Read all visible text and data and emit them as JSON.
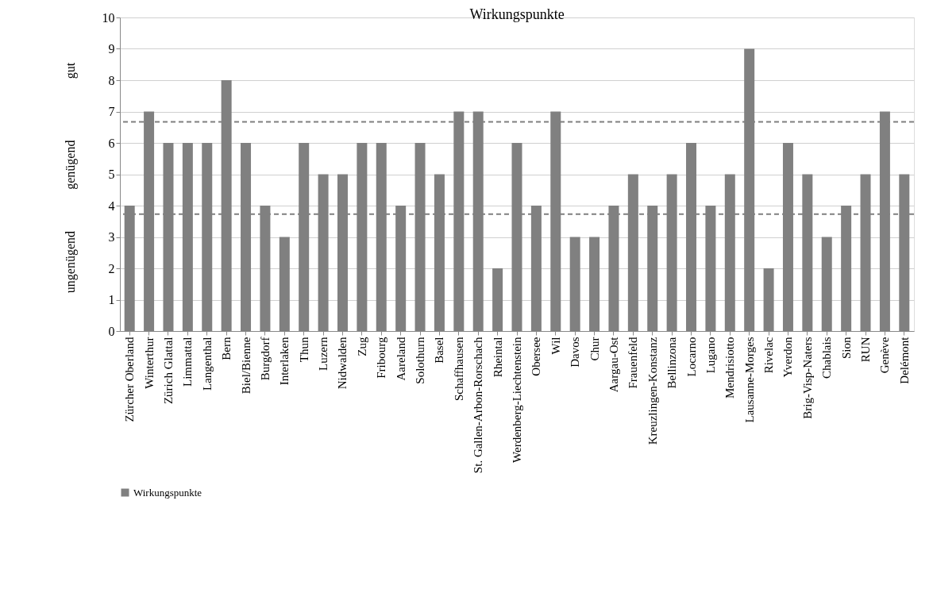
{
  "chart_data": {
    "type": "bar",
    "title": "Wirkungspunkte",
    "categories": [
      "Zürcher Oberland",
      "Winterthur",
      "Zürich Glattal",
      "Limmattal",
      "Langenthal",
      "Bern",
      "Biel/Bienne",
      "Burgdorf",
      "Interlaken",
      "Thun",
      "Luzern",
      "Nidwalden",
      "Zug",
      "Fribourg",
      "Aareland",
      "Solothurn",
      "Basel",
      "Schaffhausen",
      "St. Gallen-Arbon-Rorschach",
      "Rheintal",
      "Werdenberg-Liechtenstein",
      "Obersee",
      "Wil",
      "Davos",
      "Chur",
      "Aargau-Ost",
      "Frauenfeld",
      "Kreuzlingen-Konstanz",
      "Bellinzona",
      "Locarno",
      "Lugano",
      "Mendrisiotto",
      "Lausanne-Morges",
      "Rivelac",
      "Yverdon",
      "Brig-Visp-Naters",
      "Chablais",
      "Sion",
      "RUN",
      "Genève",
      "Delémont"
    ],
    "series": [
      {
        "name": "Wirkungspunkte",
        "color": "#808080",
        "values": [
          4,
          7,
          6,
          6,
          6,
          8,
          6,
          4,
          3,
          6,
          5,
          5,
          6,
          6,
          4,
          6,
          5,
          7,
          7,
          2,
          6,
          4,
          7,
          3,
          3,
          4,
          5,
          4,
          5,
          6,
          4,
          5,
          9,
          2,
          6,
          5,
          3,
          4,
          5,
          7,
          5
        ]
      }
    ],
    "ylim": [
      0,
      10
    ],
    "yticks": [
      0,
      1,
      2,
      3,
      4,
      5,
      6,
      7,
      8,
      9,
      10
    ],
    "grid": "y",
    "legend": "bottom",
    "ref_lines": [
      {
        "axis": "y",
        "value": 6.67,
        "color": "#808080",
        "line_style": "dashed"
      },
      {
        "axis": "y",
        "value": 3.73,
        "color": "#808080",
        "line_style": "dashed"
      }
    ],
    "annotations": [
      "gut",
      "genügend",
      "ungenügend"
    ]
  }
}
